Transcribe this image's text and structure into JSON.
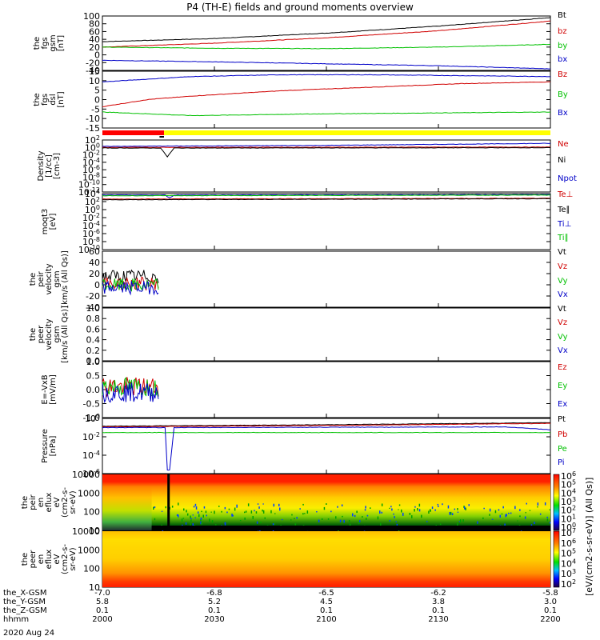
{
  "title": "P4 (TH-E) fields and ground moments overview",
  "date": "2020 Aug 24",
  "colors": {
    "black": "#000000",
    "red": "#d00000",
    "green": "#00c000",
    "blue": "#0000c8"
  },
  "bars": {
    "red_until": 2027.5,
    "black_mark_from": 2025.5,
    "black_mark_to": 2027.5
  },
  "x_axis": {
    "range": [
      2000,
      2200
    ],
    "tick_positions": [
      2000,
      2050,
      2100,
      2150,
      2200
    ],
    "row_labels": [
      "the_X-GSM",
      "the_Y-GSM",
      "the_Z-GSM",
      "hhmm"
    ],
    "rows": [
      [
        "-7.0",
        "-6.8",
        "-6.5",
        "-6.2",
        "-5.8"
      ],
      [
        "5.8",
        "5.2",
        "4.5",
        "3.8",
        "3.0"
      ],
      [
        "0.1",
        "0.1",
        "0.1",
        "0.1",
        "0.1"
      ],
      [
        "2000",
        "2030",
        "2100",
        "2130",
        "2200"
      ]
    ]
  },
  "spec_colorbar": {
    "ticks1": [
      "10^6",
      "10^5",
      "10^4",
      "10^3",
      "10^2",
      "10^1",
      "10^0"
    ],
    "ticks2": [
      "10^7",
      "10^6",
      "10^5",
      "10^4",
      "10^3",
      "10^2"
    ],
    "label": "[eV/(cm2-s-sr-eV)] (All Qs)]"
  },
  "chart_data": [
    {
      "type": "line",
      "id": "fgs_gsm",
      "ylabel_lines": [
        "the",
        "fgs",
        "gsm",
        "[nT]"
      ],
      "yticks": [
        "100",
        "80",
        "60",
        "40",
        "20",
        "0",
        "-20",
        "-40"
      ],
      "ylim": [
        -40,
        100
      ],
      "series": [
        {
          "name": "Bt",
          "color": "#000000",
          "x": [
            2000,
            2050,
            2100,
            2150,
            2200
          ],
          "y": [
            34,
            42,
            56,
            74,
            96
          ]
        },
        {
          "name": "bz",
          "color": "#d00000",
          "x": [
            2000,
            2050,
            2100,
            2150,
            2200
          ],
          "y": [
            20,
            30,
            44,
            62,
            87
          ]
        },
        {
          "name": "by",
          "color": "#00c000",
          "x": [
            2000,
            2050,
            2100,
            2150,
            2200
          ],
          "y": [
            20,
            17,
            16,
            20,
            27
          ]
        },
        {
          "name": "bx",
          "color": "#0000c8",
          "x": [
            2000,
            2050,
            2100,
            2150,
            2200
          ],
          "y": [
            -14,
            -18,
            -23,
            -28,
            -36
          ]
        }
      ]
    },
    {
      "type": "line",
      "id": "fgs_dsl",
      "ylabel_lines": [
        "the",
        "fgs",
        "dsl",
        "[nT]"
      ],
      "yticks": [
        "15",
        "10",
        "5",
        "0",
        "-5",
        "-10",
        "-15"
      ],
      "ylim": [
        -17,
        15
      ],
      "series": [
        {
          "name": "Bz",
          "color": "#d00000",
          "x": [
            2000,
            2020,
            2040,
            2080,
            2120,
            2160,
            2200
          ],
          "y": [
            -5,
            -1,
            1,
            4,
            6,
            8,
            9
          ]
        },
        {
          "name": "By",
          "color": "#00c000",
          "x": [
            2000,
            2040,
            2100,
            2200
          ],
          "y": [
            -8,
            -10,
            -9,
            -8
          ]
        },
        {
          "name": "Bx",
          "color": "#0000c8",
          "x": [
            2000,
            2040,
            2080,
            2120,
            2200
          ],
          "y": [
            9,
            12,
            13,
            13,
            12
          ]
        }
      ]
    },
    {
      "type": "line",
      "id": "density",
      "ylabel_lines": [
        "Density",
        "[1/cc]",
        "[cm-3]"
      ],
      "yticks": [
        "10^2",
        "10^0",
        "10^-2",
        "10^-4",
        "10^-6",
        "10^-8",
        "10^-10",
        "10^-12"
      ],
      "ylim": [
        -13,
        2.5
      ],
      "log": true,
      "series": [
        {
          "name": "Ne",
          "color": "#d00000",
          "x": [
            2000,
            2200
          ],
          "y": [
            0.3,
            0.4
          ]
        },
        {
          "name": "Ni",
          "color": "#000000",
          "x": [
            2000,
            2026,
            2029,
            2032,
            2200
          ],
          "y": [
            0.1,
            0.1,
            -2.5,
            0.1,
            0.2
          ]
        },
        {
          "name": "Npot",
          "color": "#0000c8",
          "x": [
            2000,
            2100,
            2200
          ],
          "y": [
            0.6,
            0.9,
            1.5
          ]
        }
      ]
    },
    {
      "type": "line",
      "id": "temperature",
      "ylabel_lines": [
        "moqt3",
        "[eV]"
      ],
      "yticks": [
        "10^4",
        "10^2",
        "10^0",
        "10^-2",
        "10^-4",
        "10^-6",
        "10^-8",
        "10^-10"
      ],
      "ylim": [
        -11,
        4.4
      ],
      "log": true,
      "series": [
        {
          "name": "Te⊥",
          "color": "#d00000",
          "x": [
            2000,
            2200
          ],
          "y": [
            2.9,
            3.1
          ]
        },
        {
          "name": "Te∥",
          "color": "#000000",
          "x": [
            2000,
            2200
          ],
          "y": [
            2.7,
            3.0
          ]
        },
        {
          "name": "Ti⊥",
          "color": "#0000c8",
          "x": [
            2000,
            2028,
            2030,
            2032,
            2200
          ],
          "y": [
            4.0,
            4.0,
            3.2,
            4.0,
            4.1
          ]
        },
        {
          "name": "Ti∥",
          "color": "#00c000",
          "x": [
            2000,
            2200
          ],
          "y": [
            3.8,
            4.0
          ]
        }
      ]
    },
    {
      "type": "line",
      "id": "peir_velocity",
      "ylabel_lines": [
        "the",
        "peir",
        "velocity",
        "gsm",
        "[km/s (All Qs)]"
      ],
      "yticks": [
        "60",
        "40",
        "20",
        "0",
        "-20",
        "-40"
      ],
      "ylim": [
        -40,
        60
      ],
      "series": [
        {
          "name": "Vt",
          "color": "#000000",
          "x": [
            2000,
            2025
          ],
          "y": [
            15,
            15
          ]
        },
        {
          "name": "Vz",
          "color": "#d00000",
          "x": [
            2000,
            2025
          ],
          "y": [
            2,
            2
          ]
        },
        {
          "name": "Vy",
          "color": "#00c000",
          "x": [
            2000,
            2025
          ],
          "y": [
            -1,
            -1
          ]
        },
        {
          "name": "Vx",
          "color": "#0000c8",
          "x": [
            2000,
            2025
          ],
          "y": [
            -5,
            -5
          ]
        }
      ]
    },
    {
      "type": "line",
      "id": "peer_velocity",
      "ylabel_lines": [
        "the",
        "peer",
        "velocity",
        "gsm",
        "[km/s (All Qs)]"
      ],
      "yticks": [
        "1.0",
        "0.8",
        "0.6",
        "0.4",
        "0.2",
        "0.0"
      ],
      "ylim": [
        0,
        1
      ],
      "series": [
        {
          "name": "Vt",
          "color": "#000000",
          "x": [],
          "y": []
        },
        {
          "name": "Vz",
          "color": "#d00000",
          "x": [],
          "y": []
        },
        {
          "name": "Vy",
          "color": "#00c000",
          "x": [],
          "y": []
        },
        {
          "name": "Vx",
          "color": "#0000c8",
          "x": [],
          "y": []
        }
      ]
    },
    {
      "type": "line",
      "id": "efield",
      "ylabel_lines": [
        "E=-VxB",
        "[mV/m]"
      ],
      "yticks": [
        "1.0",
        "0.5",
        "0.0",
        "-0.5",
        "-1.0"
      ],
      "ylim": [
        -1,
        1
      ],
      "series": [
        {
          "name": "Ez",
          "color": "#d00000",
          "x": [
            2000,
            2025
          ],
          "y": [
            0.1,
            0.1
          ]
        },
        {
          "name": "Ey",
          "color": "#00c000",
          "x": [
            2000,
            2025
          ],
          "y": [
            0.1,
            0.1
          ]
        },
        {
          "name": "Ex",
          "color": "#0000c8",
          "x": [
            2000,
            2025
          ],
          "y": [
            -0.1,
            -0.1
          ]
        }
      ]
    },
    {
      "type": "line",
      "id": "pressure",
      "ylabel_lines": [
        "Pressure",
        "[nPa]"
      ],
      "yticks": [
        "10^0",
        "10^-2",
        "10^-4",
        "10^-6"
      ],
      "ylim": [
        -7,
        0.8
      ],
      "log": true,
      "series": [
        {
          "name": "Pt",
          "color": "#000000",
          "x": [
            2000,
            2100,
            2200
          ],
          "y": [
            -0.3,
            -0.1,
            0.2
          ]
        },
        {
          "name": "Pb",
          "color": "#d00000",
          "x": [
            2000,
            2100,
            2200
          ],
          "y": [
            -0.4,
            -0.2,
            0.1
          ]
        },
        {
          "name": "Pe",
          "color": "#00c000",
          "x": [
            2000,
            2200
          ],
          "y": [
            -1.2,
            -1.2
          ]
        },
        {
          "name": "Pi",
          "color": "#0000c8",
          "x": [
            2000,
            2028,
            2029,
            2030,
            2032,
            2180,
            2200
          ],
          "y": [
            -0.5,
            -0.5,
            -6.5,
            -6.5,
            -0.5,
            -0.4,
            -0.8
          ]
        }
      ]
    },
    {
      "type": "heatmap",
      "id": "peir_en_eflux",
      "ylabel_lines": [
        "the",
        "peir",
        "en",
        "eflux",
        "eV",
        "(cm2-s-",
        "sr-eV)"
      ],
      "yticks": [
        "10000",
        "1000",
        "100",
        "10"
      ]
    },
    {
      "type": "heatmap",
      "id": "peer_en_eflux",
      "ylabel_lines": [
        "the",
        "peer",
        "en",
        "eflux",
        "eV",
        "(cm2-s-",
        "sr-eV)"
      ],
      "yticks": [
        "10000",
        "1000",
        "100",
        "10"
      ]
    }
  ]
}
